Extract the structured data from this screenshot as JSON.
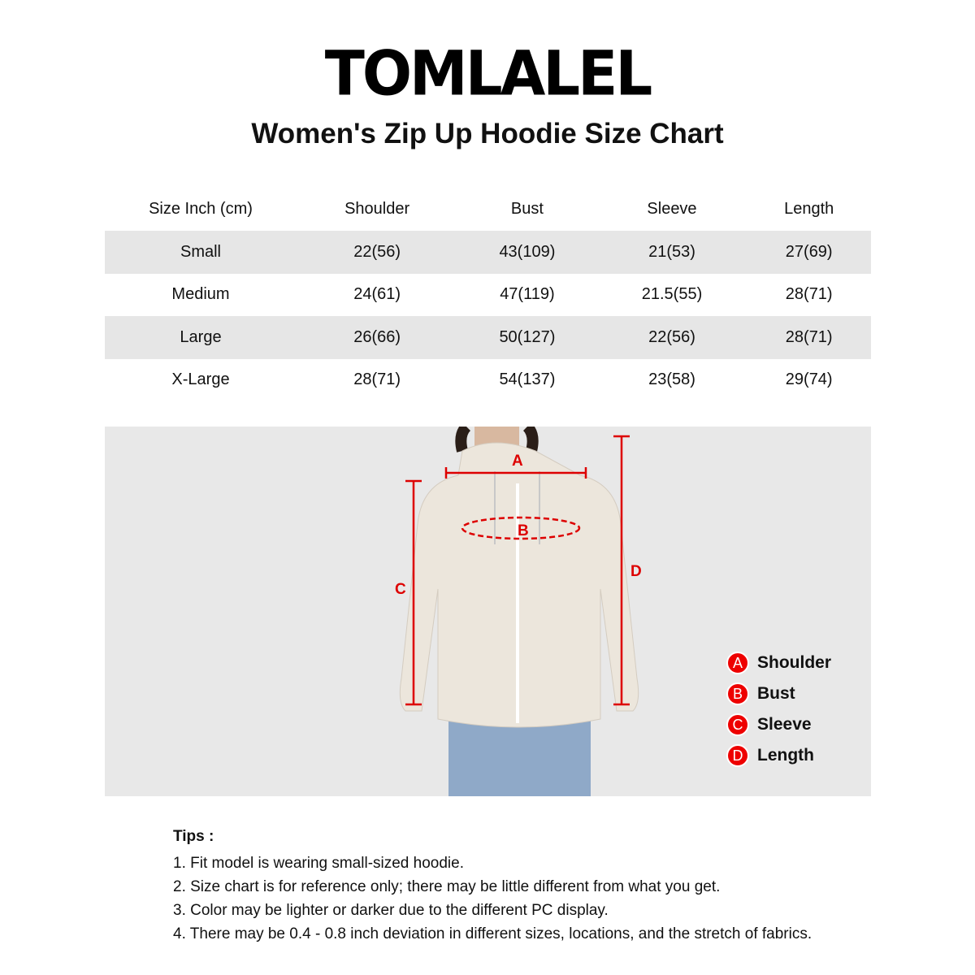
{
  "brand": "TOMLALEL",
  "title": "Women's Zip Up Hoodie Size Chart",
  "table": {
    "headers": [
      "Size Inch (cm)",
      "Shoulder",
      "Bust",
      "Sleeve",
      "Length"
    ],
    "rows": [
      [
        "Small",
        "22(56)",
        "43(109)",
        "21(53)",
        "27(69)"
      ],
      [
        "Medium",
        "24(61)",
        "47(119)",
        "21.5(55)",
        "28(71)"
      ],
      [
        "Large",
        "26(66)",
        "50(127)",
        "22(56)",
        "28(71)"
      ],
      [
        "X-Large",
        "28(71)",
        "54(137)",
        "23(58)",
        "29(74)"
      ]
    ]
  },
  "diagram": {
    "marks": [
      "A",
      "B",
      "C",
      "D"
    ],
    "accent": "#dd0000",
    "legend": [
      {
        "key": "A",
        "label": "Shoulder"
      },
      {
        "key": "B",
        "label": "Bust"
      },
      {
        "key": "C",
        "label": "Sleeve"
      },
      {
        "key": "D",
        "label": "Length"
      }
    ]
  },
  "tips": {
    "heading": "Tips :",
    "items": [
      "1. Fit model is wearing small-sized hoodie.",
      "2. Size chart is for reference only; there may be little different from what you get.",
      "3. Color may be lighter or darker due to the different PC display.",
      "4. There may be 0.4 - 0.8 inch deviation in different sizes, locations, and the stretch of fabrics."
    ]
  }
}
